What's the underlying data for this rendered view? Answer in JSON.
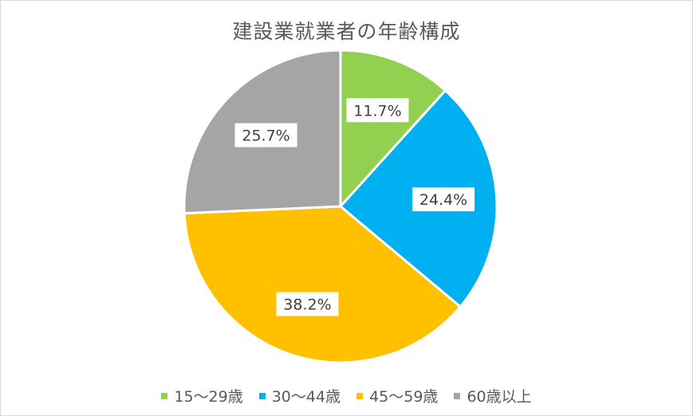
{
  "chart_data": {
    "type": "pie",
    "title": "建設業就業者の年齢構成",
    "categories": [
      "15～29歳",
      "30～44歳",
      "45～59歳",
      "60歳以上"
    ],
    "values": [
      11.7,
      24.4,
      38.2,
      25.7
    ],
    "value_labels": [
      "11.7%",
      "24.4%",
      "38.2%",
      "25.7%"
    ],
    "colors": [
      "#92d050",
      "#00b0f0",
      "#ffc000",
      "#a5a5a5"
    ],
    "start_angle": "12 o'clock, clockwise",
    "legend_position": "bottom"
  }
}
